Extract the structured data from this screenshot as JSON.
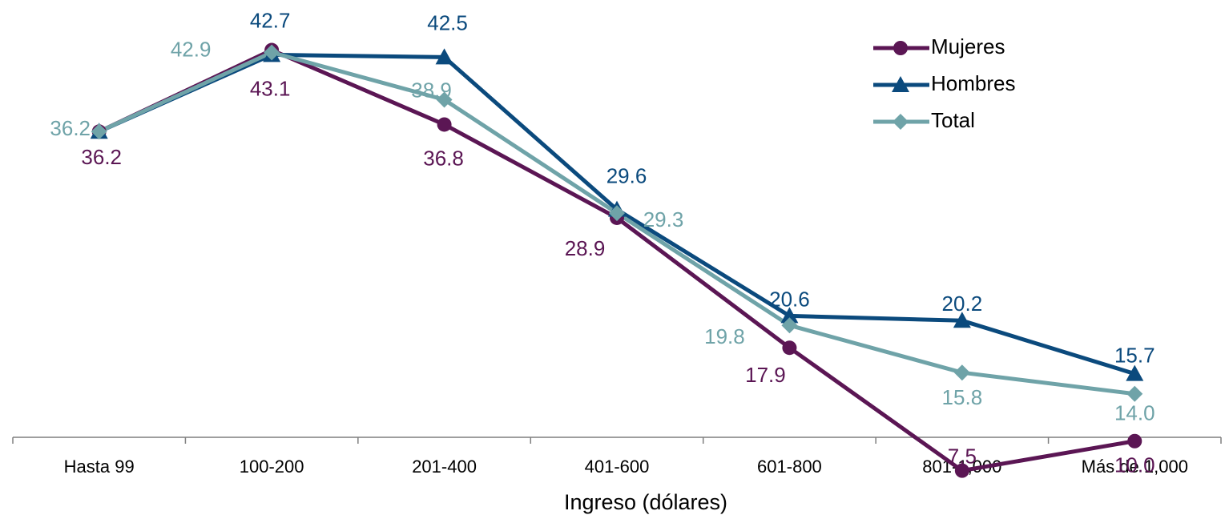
{
  "chart_data": {
    "type": "line",
    "title": "",
    "xlabel": "Ingreso (dólares)",
    "ylabel": "",
    "categories": [
      "Hasta 99",
      "100-200",
      "201-400",
      "401-600",
      "601-800",
      "801-1,000",
      "Más de 1,000"
    ],
    "ylim": [
      5,
      45
    ],
    "grid": false,
    "legend_position": "top-right",
    "series": [
      {
        "name": "Mujeres",
        "values": [
          36.2,
          43.1,
          36.8,
          28.9,
          17.9,
          7.5,
          10.0
        ],
        "labels": [
          "36.2",
          "43.1",
          "36.8",
          "28.9",
          "17.9",
          "7.5",
          "10.0"
        ],
        "color": "#5B1654",
        "marker": "circle"
      },
      {
        "name": "Hombres",
        "values": [
          36.2,
          42.7,
          42.5,
          29.6,
          20.6,
          20.2,
          15.7
        ],
        "labels": [
          "",
          "42.7",
          "42.5",
          "29.6",
          "20.6",
          "20.2",
          "15.7"
        ],
        "color": "#0B4A7D",
        "marker": "triangle"
      },
      {
        "name": "Total",
        "values": [
          36.2,
          42.9,
          38.9,
          29.3,
          19.8,
          15.8,
          14.0
        ],
        "labels": [
          "36.2",
          "42.9",
          "38.9",
          "29.3",
          "19.8",
          "15.8",
          "14.0"
        ],
        "color": "#6FA3A8",
        "marker": "diamond"
      }
    ]
  }
}
